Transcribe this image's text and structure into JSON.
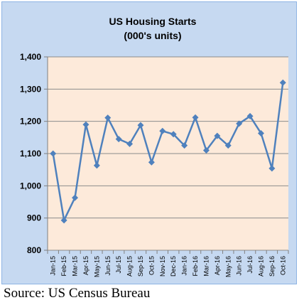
{
  "chart_data": {
    "type": "line",
    "title": "US Housing Starts",
    "subtitle": "(000's units)",
    "xlabel": "",
    "ylabel": "",
    "categories": [
      "Jan-15",
      "Feb-15",
      "Mar-15",
      "Apr-15",
      "May-15",
      "Jun-15",
      "Jul-15",
      "Aug-15",
      "Sep-15",
      "Oct-15",
      "Nov-15",
      "Dec-15",
      "Jan-16",
      "Feb-16",
      "Mar-16",
      "Apr-16",
      "May-16",
      "Jun-16",
      "Jul-16",
      "Aug-16",
      "Sep-16",
      "Oct-16"
    ],
    "series": [
      {
        "values": [
          1100,
          893,
          963,
          1190,
          1063,
          1211,
          1145,
          1130,
          1188,
          1073,
          1170,
          1160,
          1125,
          1212,
          1110,
          1155,
          1125,
          1193,
          1216,
          1163,
          1054,
          1320
        ]
      }
    ],
    "ylim": [
      800,
      1400
    ],
    "yticks": [
      800,
      900,
      1000,
      1100,
      1200,
      1300,
      1400
    ],
    "ytick_labels": [
      "800",
      "900",
      "1,000",
      "1,100",
      "1,200",
      "1,300",
      "1,400"
    ],
    "grid": true,
    "colors": {
      "chart_background": "#c6d9f1",
      "plot_background": "#fdeada",
      "line": "#4f81bd",
      "gridline": "#8c8c8c"
    }
  },
  "source": "Source: US Census Bureau"
}
